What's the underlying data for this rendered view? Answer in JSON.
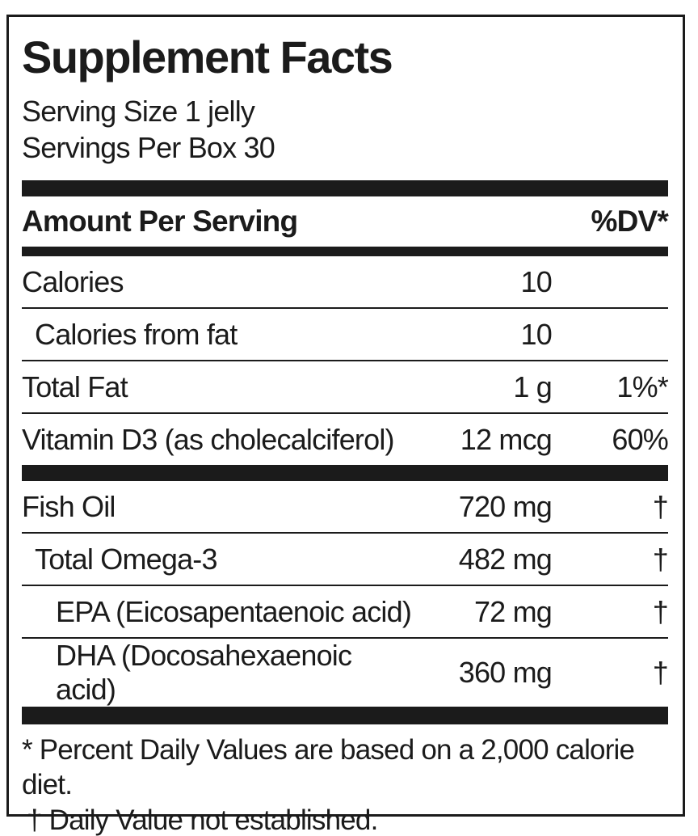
{
  "label": {
    "title": "Supplement Facts",
    "serving_size": "Serving Size 1 jelly",
    "servings_per_box": "Servings Per Box 30",
    "colors": {
      "ink": "#1b1b1b",
      "background": "#ffffff"
    },
    "table": {
      "header": {
        "amount_per_serving": "Amount Per Serving",
        "dv": "%DV*"
      },
      "rows": [
        {
          "name": "Calories",
          "amount": "10",
          "dv": "",
          "indent": 0,
          "bar_after": false
        },
        {
          "name": "Calories from fat",
          "amount": "10",
          "dv": "",
          "indent": 1,
          "bar_after": false
        },
        {
          "name": "Total Fat",
          "amount": "1 g",
          "dv": "1%*",
          "indent": 0,
          "bar_after": false
        },
        {
          "name": "Vitamin D3 (as cholecalciferol)",
          "amount": "12 mcg",
          "dv": "60%",
          "indent": 0,
          "bar_after": true
        },
        {
          "name": "Fish Oil",
          "amount": "720 mg",
          "dv": "†",
          "indent": 0,
          "bar_after": false
        },
        {
          "name": "Total Omega-3",
          "amount": "482 mg",
          "dv": "†",
          "indent": 1,
          "bar_after": false
        },
        {
          "name": "EPA (Eicosapentaenoic acid)",
          "amount": "72 mg",
          "dv": "†",
          "indent": 2,
          "bar_after": false
        },
        {
          "name": "DHA (Docosahexaenoic acid)",
          "amount": "360 mg",
          "dv": "†",
          "indent": 2,
          "bar_after": false
        }
      ]
    },
    "footnotes": {
      "percent_dv": "* Percent Daily Values are based on a 2,000 calorie diet.",
      "dagger": "† Daily Value not established."
    }
  }
}
